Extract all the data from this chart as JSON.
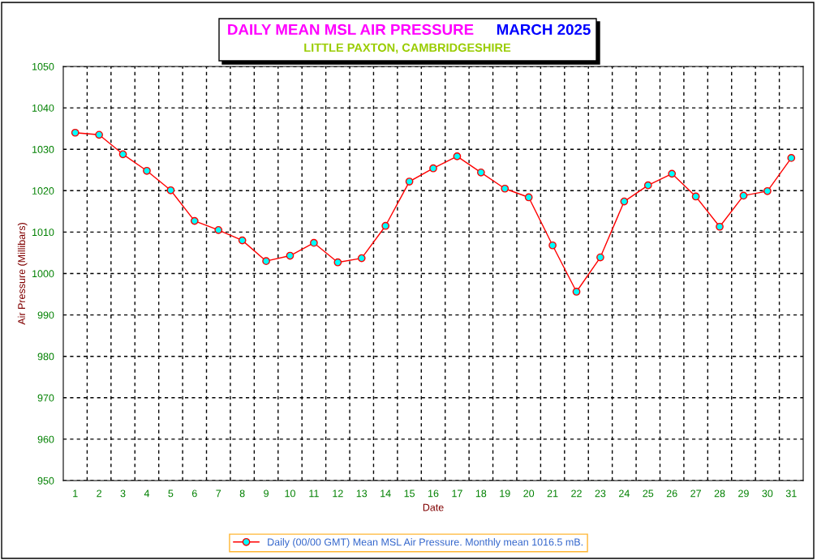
{
  "chart_data": {
    "type": "line",
    "title": "DAILY MEAN MSL AIR PRESSURE",
    "subtitle": "LITTLE PAXTON, CAMBRIDGESHIRE",
    "annotations": [
      "MARCH 2025"
    ],
    "xlabel": "Date",
    "ylabel": "Air Pressure (Millibars)",
    "categories": [
      "1",
      "2",
      "3",
      "4",
      "5",
      "6",
      "7",
      "8",
      "9",
      "10",
      "11",
      "12",
      "13",
      "14",
      "15",
      "16",
      "17",
      "18",
      "19",
      "20",
      "21",
      "22",
      "23",
      "24",
      "25",
      "26",
      "27",
      "28",
      "29",
      "30",
      "31"
    ],
    "series": [
      {
        "name": "Daily (00/00 GMT) Mean MSL Air Pressure. Monthly mean 1016.5 mB.",
        "color": "#ff0000",
        "values": [
          1034.0,
          1033.5,
          1028.8,
          1024.8,
          1020.1,
          1012.7,
          1010.5,
          1008.0,
          1003.0,
          1004.3,
          1007.4,
          1002.7,
          1003.7,
          1011.5,
          1022.2,
          1025.4,
          1028.3,
          1024.4,
          1020.5,
          1018.4,
          1006.8,
          995.6,
          1003.9,
          1017.4,
          1021.3,
          1024.1,
          1018.6,
          1011.3,
          1018.8,
          1019.9,
          1027.9
        ]
      }
    ],
    "ylim": [
      950,
      1050
    ],
    "yticks": [
      950,
      960,
      970,
      980,
      990,
      1000,
      1010,
      1020,
      1030,
      1040,
      1050
    ],
    "grid": true,
    "legend": "bottom",
    "marker": "circle",
    "line_style": "solid"
  }
}
